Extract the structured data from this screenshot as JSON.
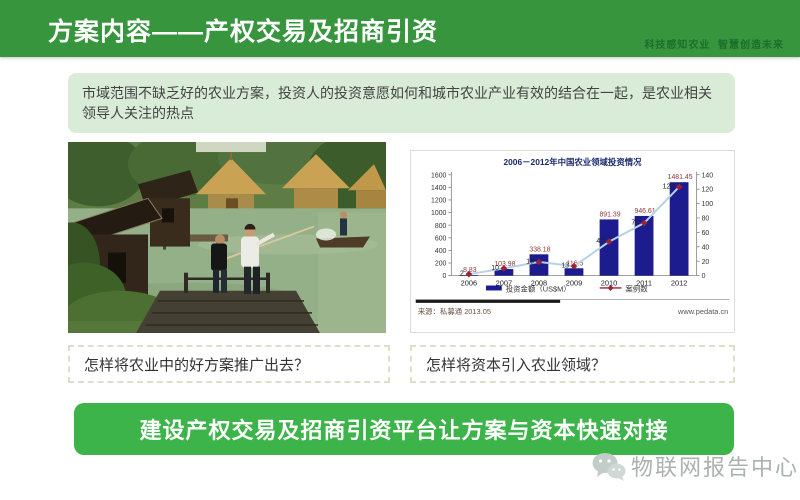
{
  "header": {
    "title": "方案内容——产权交易及招商引资",
    "tagline": "科技感知农业  智慧创造未来"
  },
  "intro_text": "市域范围不缺乏好的农业方案，投资人的投资意愿如何和城市农业产业有效的结合在一起，是农业相关领导人关注的热点",
  "captions": {
    "left": "怎样将农业中的好方案推广出去？",
    "right": "怎样将资本引入农业领域？"
  },
  "banner_text": "建设产权交易及招商引资平台让方案与资本快速对接",
  "watermark_text": "物联网报告中心",
  "icons": {
    "wechat": "wechat-logo"
  },
  "colors": {
    "header_green": "#37953e",
    "banner_green": "#3cb44a",
    "intro_bg": "#d9ecd7",
    "tagline_green": "#1d6e2a"
  },
  "chart_data": {
    "type": "bar",
    "title": "2006－2012年中国农业领域投资情况",
    "categories": [
      "2006",
      "2007",
      "2008",
      "2009",
      "2010",
      "2011",
      "2012"
    ],
    "series": [
      {
        "name": "投资金额（US$M）",
        "type": "bar",
        "axis": "left",
        "values": [
          8.83,
          103.98,
          338.18,
          116.5,
          891.39,
          946.61,
          1481.45
        ]
      },
      {
        "name": "案例数",
        "type": "line",
        "axis": "right",
        "values": [
          2,
          10,
          19,
          13,
          47,
          73,
          123
        ]
      }
    ],
    "y_left": {
      "min": 0,
      "max": 1600,
      "step": 200
    },
    "y_right": {
      "min": 0,
      "max": 140,
      "step": 20
    },
    "legend_position": "bottom",
    "grid": false,
    "source": "来源：私募通 2013.05",
    "website": "www.pedata.cn",
    "colors": {
      "bar": "#1c1c8f",
      "line": "#b7d2e2",
      "marker": "#9b2335",
      "bar_label": "#8a3a3a",
      "title": "#1b2a6b"
    }
  }
}
